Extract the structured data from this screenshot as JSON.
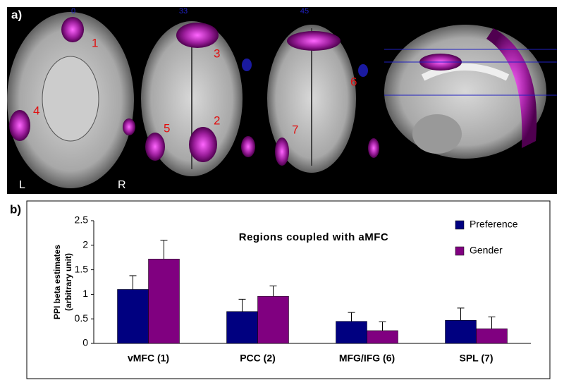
{
  "panel_labels": [
    "a)",
    "b)"
  ],
  "brain_image": {
    "slice_labels": [
      "0",
      "33",
      "45"
    ],
    "region_labels": [
      "1",
      "2",
      "3",
      "4",
      "5",
      "6",
      "7"
    ],
    "side_labels": [
      "L",
      "R"
    ]
  },
  "chart_data": {
    "type": "bar",
    "title": "Regions coupled with aMFC",
    "ylabel": [
      "PPI beta estimates",
      "(arbitrary unit)"
    ],
    "categories": [
      "vMFC (1)",
      "PCC (2)",
      "MFG/IFG (6)",
      "SPL (7)"
    ],
    "series": [
      {
        "name": "Preference",
        "color": "#000080",
        "values": [
          1.1,
          0.65,
          0.45,
          0.47
        ],
        "errors": [
          0.28,
          0.25,
          0.18,
          0.25
        ]
      },
      {
        "name": "Gender",
        "color": "#800080",
        "values": [
          1.72,
          0.96,
          0.26,
          0.3
        ],
        "errors": [
          0.38,
          0.21,
          0.18,
          0.24
        ]
      }
    ],
    "ylim": [
      0,
      2.5
    ],
    "yticks": [
      0,
      0.5,
      1,
      1.5,
      2,
      2.5
    ],
    "grid": false,
    "legend": "top-right"
  }
}
